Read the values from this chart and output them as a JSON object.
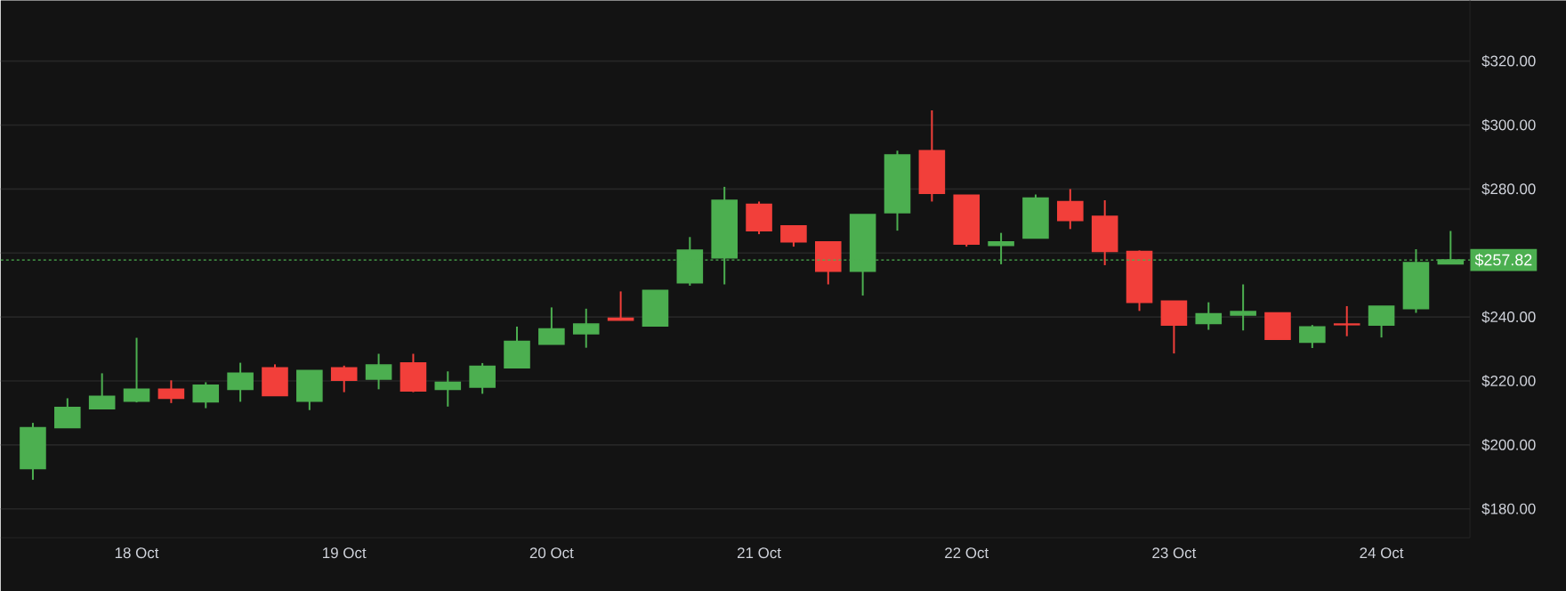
{
  "chart_data": {
    "type": "candlestick",
    "categories": [
      null,
      null,
      null,
      "18 Oct",
      null,
      null,
      null,
      null,
      null,
      "19 Oct",
      null,
      null,
      null,
      null,
      null,
      "20 Oct",
      null,
      null,
      null,
      null,
      null,
      "21 Oct",
      null,
      null,
      null,
      null,
      null,
      "22 Oct",
      null,
      null,
      null,
      null,
      null,
      "23 Oct",
      null,
      null,
      null,
      null,
      null,
      "24 Oct",
      null,
      null
    ],
    "ohlc": [
      [
        192.6,
        206.9,
        189.1,
        205.4
      ],
      [
        205.4,
        214.6,
        205.4,
        211.7
      ],
      [
        211.3,
        222.4,
        211.3,
        215.2
      ],
      [
        213.7,
        233.5,
        213.3,
        217.4
      ],
      [
        217.4,
        220.2,
        213.1,
        214.6
      ],
      [
        213.5,
        219.6,
        211.5,
        218.7
      ],
      [
        217.4,
        225.7,
        213.5,
        222.4
      ],
      [
        224.1,
        225.2,
        215.4,
        215.4
      ],
      [
        213.7,
        223.3,
        210.9,
        223.3
      ],
      [
        224.1,
        224.8,
        216.5,
        220.2
      ],
      [
        220.6,
        228.5,
        217.4,
        225.0
      ],
      [
        225.6,
        228.5,
        216.5,
        216.9
      ],
      [
        217.4,
        223.0,
        212.0,
        219.6
      ],
      [
        218.1,
        225.6,
        216.0,
        224.6
      ],
      [
        224.1,
        237.0,
        224.1,
        232.4
      ],
      [
        231.5,
        243.0,
        231.5,
        236.3
      ],
      [
        234.8,
        242.6,
        230.4,
        237.8
      ],
      [
        239.6,
        248.0,
        238.9,
        239.0
      ],
      [
        237.2,
        248.3,
        237.2,
        248.3
      ],
      [
        250.7,
        265.0,
        249.8,
        260.9
      ],
      [
        258.5,
        280.7,
        250.2,
        276.5
      ],
      [
        275.2,
        276.1,
        265.9,
        267.0
      ],
      [
        268.5,
        268.5,
        262.0,
        263.5
      ],
      [
        263.5,
        263.5,
        250.2,
        254.3
      ],
      [
        254.3,
        272.0,
        246.7,
        272.0
      ],
      [
        272.6,
        292.0,
        267.0,
        290.7
      ],
      [
        292.0,
        304.6,
        276.1,
        278.7
      ],
      [
        278.1,
        278.1,
        262.0,
        262.8
      ],
      [
        262.4,
        266.3,
        256.5,
        263.5
      ],
      [
        264.7,
        278.3,
        264.7,
        277.2
      ],
      [
        276.1,
        280.0,
        267.5,
        270.2
      ],
      [
        271.5,
        276.5,
        256.2,
        260.5
      ],
      [
        260.5,
        260.8,
        241.9,
        244.6
      ],
      [
        245.0,
        245.0,
        228.6,
        237.5
      ],
      [
        238.0,
        244.6,
        236.0,
        241.0
      ],
      [
        240.6,
        250.2,
        235.8,
        241.7
      ],
      [
        241.3,
        241.3,
        233.0,
        233.0
      ],
      [
        232.1,
        237.5,
        230.3,
        236.9
      ],
      [
        237.8,
        243.4,
        234.0,
        237.6
      ],
      [
        237.5,
        243.4,
        233.6,
        243.4
      ],
      [
        242.6,
        261.2,
        241.3,
        257.0
      ],
      [
        256.6,
        266.9,
        256.6,
        257.82
      ]
    ],
    "colors": [
      "#4caf50",
      "#4caf50",
      "#4caf50",
      "#4caf50",
      "#f23f3a",
      "#4caf50",
      "#4caf50",
      "#f23f3a",
      "#4caf50",
      "#f23f3a",
      "#4caf50",
      "#f23f3a",
      "#4caf50",
      "#4caf50",
      "#4caf50",
      "#4caf50",
      "#4caf50",
      "#f23f3a",
      "#4caf50",
      "#4caf50",
      "#4caf50",
      "#f23f3a",
      "#f23f3a",
      "#f23f3a",
      "#4caf50",
      "#4caf50",
      "#f23f3a",
      "#f23f3a",
      "#4caf50",
      "#4caf50",
      "#f23f3a",
      "#f23f3a",
      "#f23f3a",
      "#f23f3a",
      "#4caf50",
      "#4caf50",
      "#f23f3a",
      "#4caf50",
      "#f23f3a",
      "#4caf50",
      "#4caf50",
      "#4caf50"
    ],
    "ylim": [
      171,
      339
    ],
    "yticks": [
      {
        "value": 180,
        "label": "$180.00"
      },
      {
        "value": 200,
        "label": "$200.00"
      },
      {
        "value": 220,
        "label": "$220.00"
      },
      {
        "value": 240,
        "label": "$240.00"
      },
      {
        "value": 260,
        "label": null
      },
      {
        "value": 280,
        "label": "$280.00"
      },
      {
        "value": 300,
        "label": "$300.00"
      },
      {
        "value": 320,
        "label": "$320.00"
      }
    ],
    "grid": "y",
    "ref_lines": [
      {
        "axis": "y",
        "value": 257.82,
        "label": "$257.82",
        "color": "#4caf50",
        "line_style": "dotted"
      }
    ]
  }
}
